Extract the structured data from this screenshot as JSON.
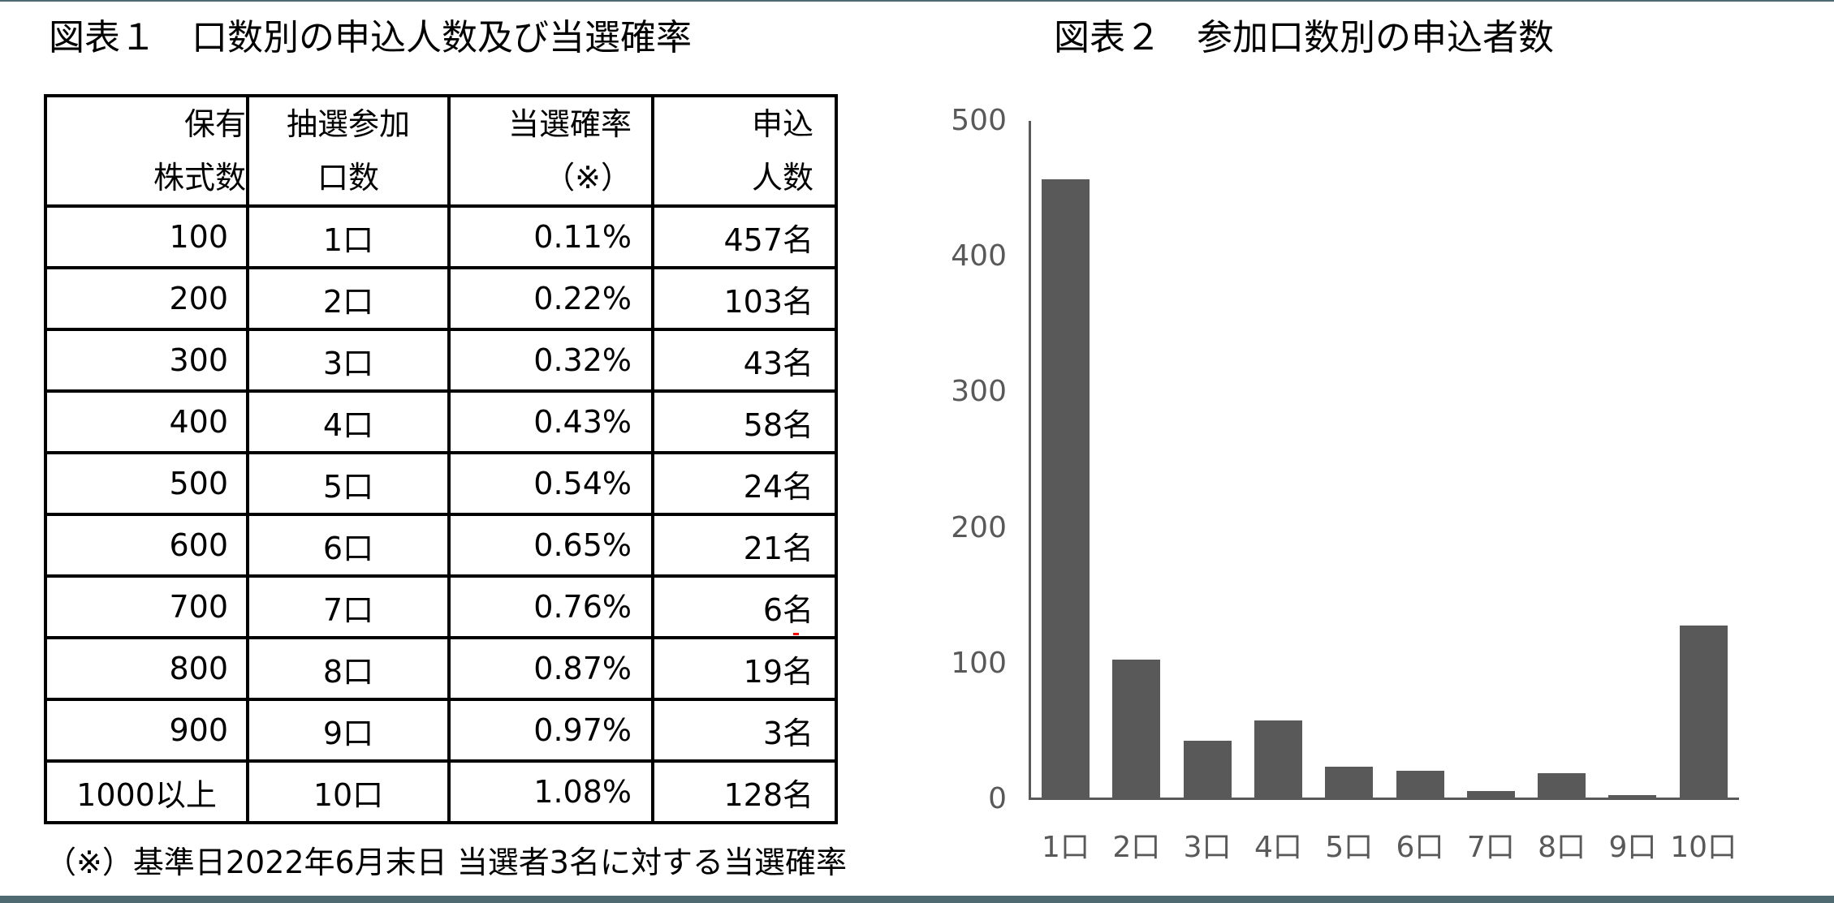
{
  "colors": {
    "bar": "#595959",
    "axis": "#595959",
    "frame_band": "#4f6a71",
    "table_border": "#000000"
  },
  "figure1": {
    "title": "図表１　口数別の申込人数及び当選確率",
    "headers": [
      {
        "line1": "保有",
        "line2": "株式数"
      },
      {
        "line1": "抽選参加",
        "line2": "口数"
      },
      {
        "line1": "当選確率",
        "line2": "（※）"
      },
      {
        "line1": "申込",
        "line2": "人数"
      }
    ],
    "rows": [
      {
        "shares": "100",
        "units": "1口",
        "rate": "0.11%",
        "applicants": "457名"
      },
      {
        "shares": "200",
        "units": "2口",
        "rate": "0.22%",
        "applicants": "103名"
      },
      {
        "shares": "300",
        "units": "3口",
        "rate": "0.32%",
        "applicants": "43名"
      },
      {
        "shares": "400",
        "units": "4口",
        "rate": "0.43%",
        "applicants": "58名"
      },
      {
        "shares": "500",
        "units": "5口",
        "rate": "0.54%",
        "applicants": "24名"
      },
      {
        "shares": "600",
        "units": "6口",
        "rate": "0.65%",
        "applicants": "21名"
      },
      {
        "shares": "700",
        "units": "7口",
        "rate": "0.76%",
        "applicants": "6名"
      },
      {
        "shares": "800",
        "units": "8口",
        "rate": "0.87%",
        "applicants": "19名"
      },
      {
        "shares": "900",
        "units": "9口",
        "rate": "0.97%",
        "applicants": "3名"
      },
      {
        "shares": "1000以上",
        "units": "10口",
        "rate": "1.08%",
        "applicants": "128名"
      }
    ],
    "footnote": "（※）基準日2022年6月末日 当選者3名に対する当選確率"
  },
  "figure2": {
    "title": "図表２　参加口数別の申込者数",
    "y_ticks": [
      "500",
      "400",
      "300",
      "200",
      "100",
      "0"
    ]
  },
  "chart_data": [
    {
      "type": "table",
      "title": "図表１　口数別の申込人数及び当選確率",
      "columns": [
        "保有株式数",
        "抽選参加口数",
        "当選確率（※）",
        "申込人数"
      ],
      "rows": [
        [
          "100",
          "1口",
          "0.11%",
          "457名"
        ],
        [
          "200",
          "2口",
          "0.22%",
          "103名"
        ],
        [
          "300",
          "3口",
          "0.32%",
          "43名"
        ],
        [
          "400",
          "4口",
          "0.43%",
          "58名"
        ],
        [
          "500",
          "5口",
          "0.54%",
          "24名"
        ],
        [
          "600",
          "6口",
          "0.65%",
          "21名"
        ],
        [
          "700",
          "7口",
          "0.76%",
          "6名"
        ],
        [
          "800",
          "8口",
          "0.87%",
          "19名"
        ],
        [
          "900",
          "9口",
          "0.97%",
          "3名"
        ],
        [
          "1000以上",
          "10口",
          "1.08%",
          "128名"
        ]
      ],
      "footnote": "（※）基準日2022年6月末日 当選者3名に対する当選確率"
    },
    {
      "type": "bar",
      "title": "図表２　参加口数別の申込者数",
      "categories": [
        "1口",
        "2口",
        "3口",
        "4口",
        "5口",
        "6口",
        "7口",
        "8口",
        "9口",
        "10口"
      ],
      "values": [
        457,
        103,
        43,
        58,
        24,
        21,
        6,
        19,
        3,
        128
      ],
      "xlabel": "",
      "ylabel": "",
      "ylim": [
        0,
        500
      ],
      "y_ticks": [
        0,
        100,
        200,
        300,
        400,
        500
      ],
      "grid": false,
      "legend": "none"
    }
  ]
}
